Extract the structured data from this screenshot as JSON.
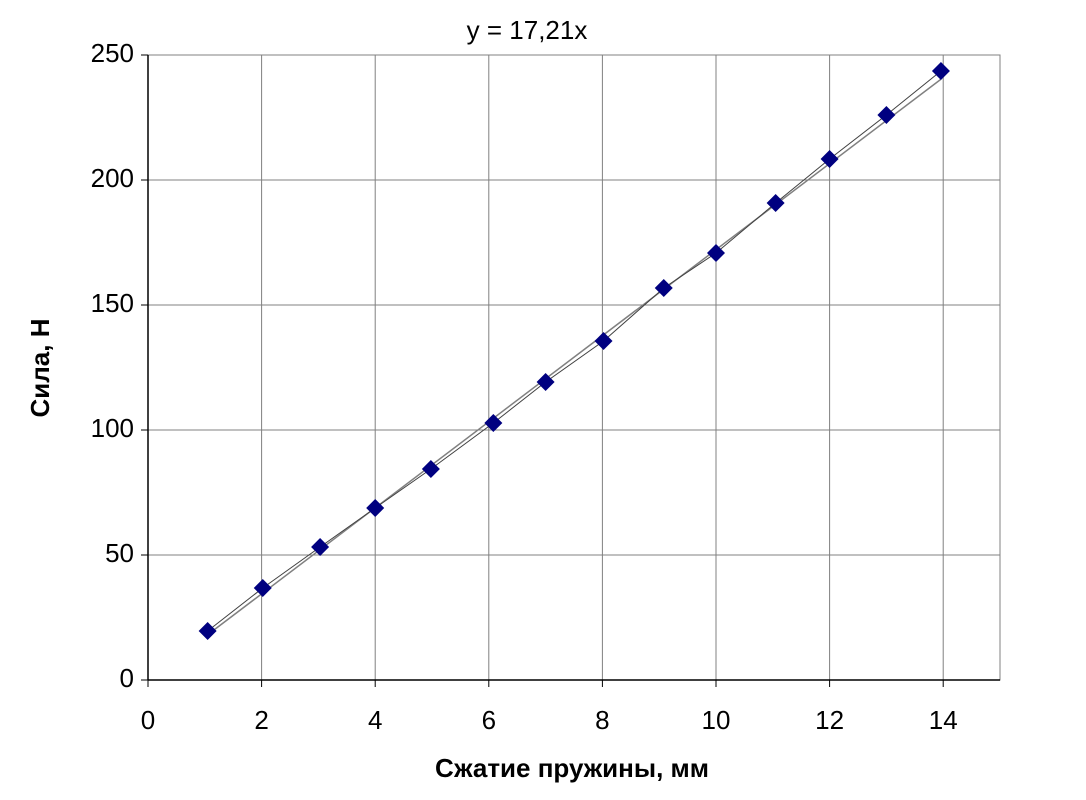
{
  "chart_data": {
    "type": "scatter",
    "title": "y = 17,21x",
    "x_label": "Сжатие пружины, мм",
    "y_label": "Сила, Н",
    "x": [
      1.05,
      2.02,
      3.03,
      4.0,
      4.98,
      6.08,
      7.0,
      8.02,
      9.08,
      10.0,
      11.05,
      12.0,
      13.0,
      13.96
    ],
    "series": [
      {
        "name": "Сила",
        "color": "#000080",
        "values": [
          19.6,
          36.8,
          53.2,
          68.8,
          84.4,
          102.8,
          119.2,
          135.6,
          156.8,
          170.8,
          190.8,
          208.4,
          226,
          243.6
        ]
      }
    ],
    "trendline": {
      "x": [
        1.05,
        13.96
      ],
      "values": [
        18.1,
        240.3
      ],
      "color": "#808080"
    },
    "xlim": [
      0,
      15
    ],
    "xticks": [
      0,
      2,
      4,
      6,
      8,
      10,
      12,
      14
    ],
    "ylim": [
      0,
      250
    ],
    "yticks": [
      0,
      50,
      100,
      150,
      200,
      250
    ],
    "grid": true
  }
}
